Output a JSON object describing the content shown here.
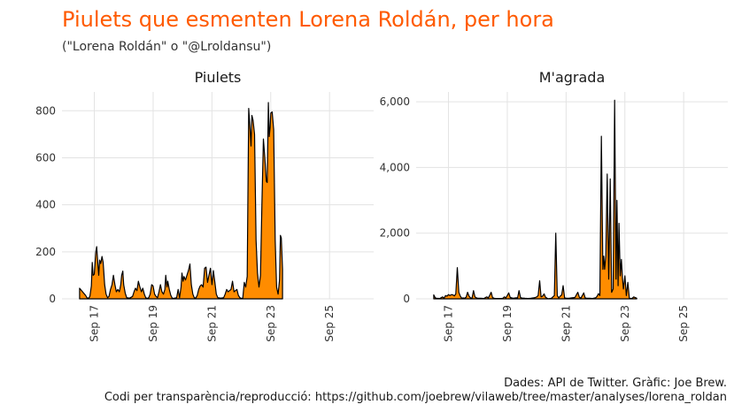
{
  "title": "Piulets que esmenten Lorena Roldán, per hora",
  "subtitle": "(\"Lorena Roldán\" o \"@Lroldansu\")",
  "caption": {
    "line1": "Dades: API de Twitter. Gràfic: Joe Brew.",
    "line2": "Codi per transparència/reproducció: https://github.com/joebrew/vilaweb/tree/master/analyses/lorena_roldan"
  },
  "colors": {
    "title": "#ff5a00",
    "fill": "#ff8c00",
    "line": "#000000"
  },
  "chart_data": [
    {
      "type": "area",
      "facet": "Piulets",
      "x_unit": "days since Sep 15 (hourly data)",
      "x_ticks": [
        {
          "x": 2,
          "label": "Sep 17"
        },
        {
          "x": 4,
          "label": "Sep 19"
        },
        {
          "x": 6,
          "label": "Sep 21"
        },
        {
          "x": 8,
          "label": "Sep 23"
        },
        {
          "x": 10,
          "label": "Sep 25"
        }
      ],
      "xlim": [
        0.9,
        11.5
      ],
      "ylim": [
        0,
        880
      ],
      "y_ticks": [
        {
          "y": 0,
          "label": "0"
        },
        {
          "y": 200,
          "label": "200"
        },
        {
          "y": 400,
          "label": "400"
        },
        {
          "y": 600,
          "label": "600"
        },
        {
          "y": 800,
          "label": "800"
        }
      ],
      "points": [
        [
          1.5,
          45
        ],
        [
          1.6,
          30
        ],
        [
          1.7,
          15
        ],
        [
          1.75,
          5
        ],
        [
          1.8,
          2
        ],
        [
          1.85,
          10
        ],
        [
          1.9,
          55
        ],
        [
          1.93,
          155
        ],
        [
          1.96,
          100
        ],
        [
          2.0,
          105
        ],
        [
          2.05,
          200
        ],
        [
          2.08,
          222
        ],
        [
          2.12,
          150
        ],
        [
          2.15,
          100
        ],
        [
          2.18,
          165
        ],
        [
          2.22,
          150
        ],
        [
          2.26,
          180
        ],
        [
          2.3,
          155
        ],
        [
          2.35,
          60
        ],
        [
          2.4,
          20
        ],
        [
          2.45,
          5
        ],
        [
          2.5,
          10
        ],
        [
          2.55,
          40
        ],
        [
          2.6,
          60
        ],
        [
          2.65,
          100
        ],
        [
          2.7,
          60
        ],
        [
          2.75,
          30
        ],
        [
          2.8,
          40
        ],
        [
          2.85,
          30
        ],
        [
          2.9,
          60
        ],
        [
          2.93,
          100
        ],
        [
          2.97,
          118
        ],
        [
          3.0,
          60
        ],
        [
          3.05,
          25
        ],
        [
          3.1,
          5
        ],
        [
          3.2,
          3
        ],
        [
          3.3,
          10
        ],
        [
          3.35,
          30
        ],
        [
          3.4,
          45
        ],
        [
          3.45,
          35
        ],
        [
          3.5,
          75
        ],
        [
          3.55,
          50
        ],
        [
          3.6,
          30
        ],
        [
          3.65,
          45
        ],
        [
          3.7,
          20
        ],
        [
          3.75,
          5
        ],
        [
          3.8,
          2
        ],
        [
          3.85,
          5
        ],
        [
          3.9,
          20
        ],
        [
          3.95,
          60
        ],
        [
          4.0,
          55
        ],
        [
          4.05,
          20
        ],
        [
          4.1,
          10
        ],
        [
          4.15,
          5
        ],
        [
          4.2,
          30
        ],
        [
          4.25,
          60
        ],
        [
          4.3,
          30
        ],
        [
          4.35,
          20
        ],
        [
          4.4,
          40
        ],
        [
          4.43,
          100
        ],
        [
          4.47,
          50
        ],
        [
          4.5,
          75
        ],
        [
          4.55,
          40
        ],
        [
          4.6,
          15
        ],
        [
          4.65,
          3
        ],
        [
          4.7,
          2
        ],
        [
          4.8,
          5
        ],
        [
          4.85,
          40
        ],
        [
          4.9,
          5
        ],
        [
          4.95,
          50
        ],
        [
          4.98,
          110
        ],
        [
          5.02,
          75
        ],
        [
          5.05,
          95
        ],
        [
          5.1,
          80
        ],
        [
          5.15,
          100
        ],
        [
          5.2,
          120
        ],
        [
          5.25,
          148
        ],
        [
          5.3,
          60
        ],
        [
          5.35,
          20
        ],
        [
          5.4,
          5
        ],
        [
          5.45,
          3
        ],
        [
          5.5,
          15
        ],
        [
          5.55,
          40
        ],
        [
          5.6,
          55
        ],
        [
          5.65,
          60
        ],
        [
          5.7,
          50
        ],
        [
          5.75,
          130
        ],
        [
          5.8,
          135
        ],
        [
          5.85,
          70
        ],
        [
          5.9,
          100
        ],
        [
          5.95,
          130
        ],
        [
          6.0,
          60
        ],
        [
          6.05,
          120
        ],
        [
          6.1,
          70
        ],
        [
          6.15,
          20
        ],
        [
          6.2,
          5
        ],
        [
          6.3,
          3
        ],
        [
          6.4,
          5
        ],
        [
          6.45,
          20
        ],
        [
          6.5,
          40
        ],
        [
          6.55,
          30
        ],
        [
          6.6,
          35
        ],
        [
          6.65,
          40
        ],
        [
          6.7,
          75
        ],
        [
          6.75,
          30
        ],
        [
          6.8,
          35
        ],
        [
          6.85,
          40
        ],
        [
          6.9,
          15
        ],
        [
          6.95,
          5
        ],
        [
          7.0,
          2
        ],
        [
          7.05,
          3
        ],
        [
          7.1,
          70
        ],
        [
          7.15,
          50
        ],
        [
          7.2,
          95
        ],
        [
          7.25,
          810
        ],
        [
          7.3,
          720
        ],
        [
          7.33,
          650
        ],
        [
          7.36,
          780
        ],
        [
          7.4,
          760
        ],
        [
          7.45,
          700
        ],
        [
          7.5,
          250
        ],
        [
          7.55,
          110
        ],
        [
          7.6,
          50
        ],
        [
          7.65,
          100
        ],
        [
          7.7,
          400
        ],
        [
          7.75,
          680
        ],
        [
          7.8,
          600
        ],
        [
          7.85,
          500
        ],
        [
          7.88,
          495
        ],
        [
          7.92,
          835
        ],
        [
          7.95,
          690
        ],
        [
          7.98,
          730
        ],
        [
          8.0,
          790
        ],
        [
          8.05,
          795
        ],
        [
          8.1,
          720
        ],
        [
          8.15,
          250
        ],
        [
          8.2,
          50
        ],
        [
          8.25,
          20
        ],
        [
          8.3,
          80
        ],
        [
          8.33,
          270
        ],
        [
          8.36,
          260
        ],
        [
          8.4,
          125
        ]
      ]
    },
    {
      "type": "area",
      "facet": "M'agrada",
      "x_unit": "days since Sep 15 (hourly data)",
      "x_ticks": [
        {
          "x": 2,
          "label": "Sep 17"
        },
        {
          "x": 4,
          "label": "Sep 19"
        },
        {
          "x": 6,
          "label": "Sep 21"
        },
        {
          "x": 8,
          "label": "Sep 23"
        },
        {
          "x": 10,
          "label": "Sep 25"
        }
      ],
      "xlim": [
        0.9,
        11.5
      ],
      "ylim": [
        0,
        6300
      ],
      "y_ticks": [
        {
          "y": 0,
          "label": "0"
        },
        {
          "y": 2000,
          "label": "2,000"
        },
        {
          "y": 4000,
          "label": "4,000"
        },
        {
          "y": 6000,
          "label": "6,000"
        }
      ],
      "points": [
        [
          1.5,
          120
        ],
        [
          1.55,
          30
        ],
        [
          1.6,
          20
        ],
        [
          1.7,
          10
        ],
        [
          1.8,
          60
        ],
        [
          1.85,
          20
        ],
        [
          1.9,
          100
        ],
        [
          1.95,
          80
        ],
        [
          2.0,
          130
        ],
        [
          2.05,
          100
        ],
        [
          2.1,
          130
        ],
        [
          2.15,
          120
        ],
        [
          2.2,
          90
        ],
        [
          2.25,
          150
        ],
        [
          2.3,
          950
        ],
        [
          2.35,
          200
        ],
        [
          2.4,
          90
        ],
        [
          2.45,
          20
        ],
        [
          2.5,
          30
        ],
        [
          2.55,
          20
        ],
        [
          2.6,
          50
        ],
        [
          2.65,
          200
        ],
        [
          2.7,
          80
        ],
        [
          2.75,
          30
        ],
        [
          2.8,
          20
        ],
        [
          2.85,
          250
        ],
        [
          2.9,
          60
        ],
        [
          2.95,
          30
        ],
        [
          3.0,
          20
        ],
        [
          3.1,
          15
        ],
        [
          3.2,
          10
        ],
        [
          3.3,
          60
        ],
        [
          3.35,
          30
        ],
        [
          3.4,
          100
        ],
        [
          3.45,
          200
        ],
        [
          3.5,
          40
        ],
        [
          3.55,
          20
        ],
        [
          3.6,
          10
        ],
        [
          3.7,
          10
        ],
        [
          3.8,
          10
        ],
        [
          3.85,
          20
        ],
        [
          3.9,
          60
        ],
        [
          3.95,
          30
        ],
        [
          4.0,
          100
        ],
        [
          4.05,
          180
        ],
        [
          4.1,
          40
        ],
        [
          4.2,
          20
        ],
        [
          4.3,
          30
        ],
        [
          4.35,
          30
        ],
        [
          4.4,
          250
        ],
        [
          4.45,
          40
        ],
        [
          4.5,
          25
        ],
        [
          4.6,
          15
        ],
        [
          4.7,
          10
        ],
        [
          4.8,
          20
        ],
        [
          4.9,
          30
        ],
        [
          4.95,
          40
        ],
        [
          5.0,
          60
        ],
        [
          5.05,
          100
        ],
        [
          5.1,
          550
        ],
        [
          5.15,
          60
        ],
        [
          5.2,
          80
        ],
        [
          5.25,
          150
        ],
        [
          5.3,
          50
        ],
        [
          5.35,
          20
        ],
        [
          5.4,
          5
        ],
        [
          5.5,
          20
        ],
        [
          5.55,
          60
        ],
        [
          5.6,
          100
        ],
        [
          5.65,
          2000
        ],
        [
          5.7,
          100
        ],
        [
          5.75,
          30
        ],
        [
          5.8,
          80
        ],
        [
          5.85,
          120
        ],
        [
          5.9,
          400
        ],
        [
          5.95,
          30
        ],
        [
          6.0,
          20
        ],
        [
          6.1,
          20
        ],
        [
          6.2,
          30
        ],
        [
          6.3,
          40
        ],
        [
          6.4,
          200
        ],
        [
          6.45,
          50
        ],
        [
          6.5,
          20
        ],
        [
          6.6,
          180
        ],
        [
          6.65,
          30
        ],
        [
          6.7,
          20
        ],
        [
          6.8,
          20
        ],
        [
          6.9,
          10
        ],
        [
          7.0,
          30
        ],
        [
          7.05,
          70
        ],
        [
          7.1,
          160
        ],
        [
          7.15,
          100
        ],
        [
          7.2,
          4950
        ],
        [
          7.25,
          900
        ],
        [
          7.28,
          1300
        ],
        [
          7.31,
          900
        ],
        [
          7.35,
          1300
        ],
        [
          7.4,
          3800
        ],
        [
          7.45,
          600
        ],
        [
          7.5,
          3650
        ],
        [
          7.55,
          200
        ],
        [
          7.6,
          300
        ],
        [
          7.65,
          6050
        ],
        [
          7.7,
          600
        ],
        [
          7.73,
          3000
        ],
        [
          7.77,
          400
        ],
        [
          7.8,
          2300
        ],
        [
          7.84,
          700
        ],
        [
          7.88,
          1200
        ],
        [
          7.92,
          600
        ],
        [
          7.95,
          300
        ],
        [
          8.0,
          700
        ],
        [
          8.05,
          100
        ],
        [
          8.1,
          500
        ],
        [
          8.15,
          20
        ],
        [
          8.2,
          10
        ],
        [
          8.25,
          20
        ],
        [
          8.3,
          60
        ],
        [
          8.35,
          40
        ],
        [
          8.4,
          20
        ]
      ]
    }
  ]
}
